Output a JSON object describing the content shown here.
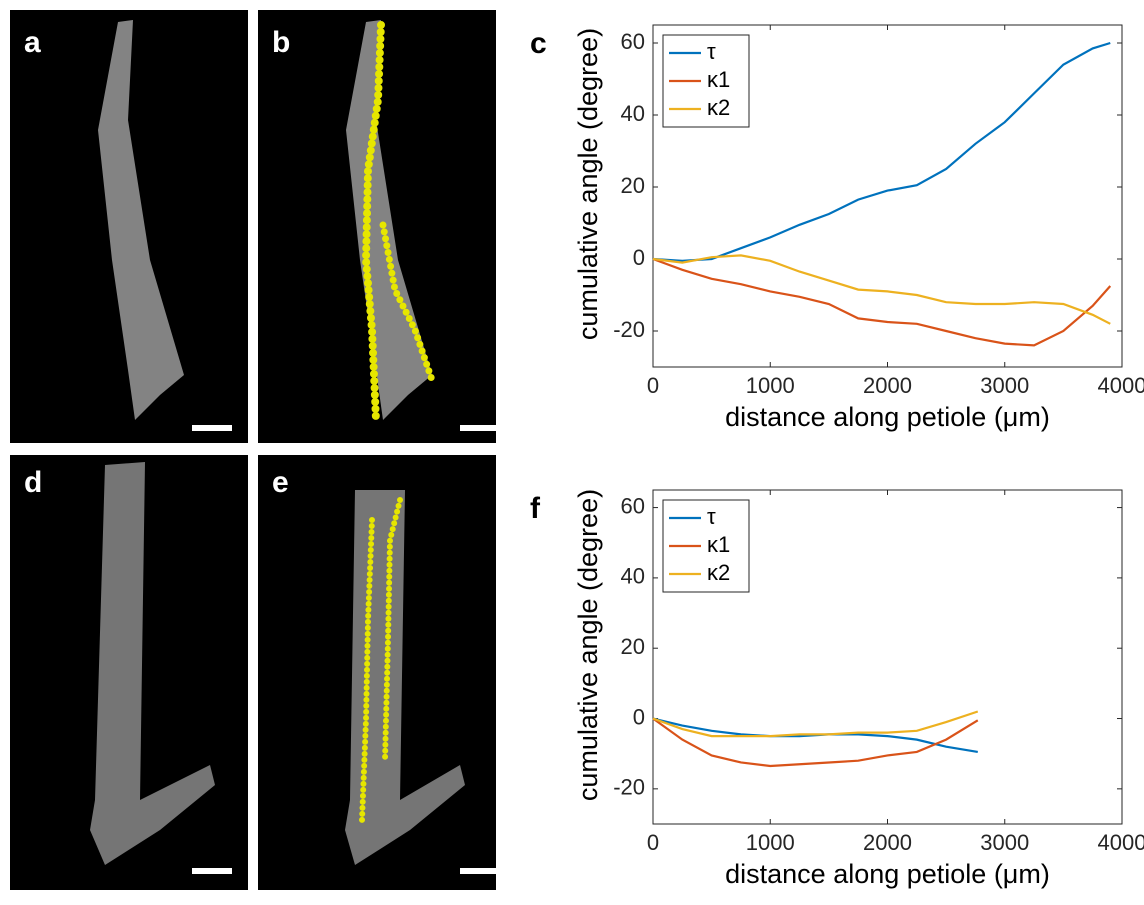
{
  "panels": {
    "a": "a",
    "b": "b",
    "d": "d",
    "e": "e"
  },
  "chart_data": [
    {
      "type": "line",
      "label": "c",
      "xlabel": "distance along petiole (μm)",
      "ylabel": "cumulative angle (degree)",
      "x": [
        0,
        250,
        500,
        750,
        1000,
        1250,
        1500,
        1750,
        2000,
        2250,
        2500,
        2750,
        3000,
        3250,
        3500,
        3750,
        3900
      ],
      "series": [
        {
          "name": "τ",
          "color": "#0072BD",
          "values": [
            0,
            -0.5,
            0,
            3,
            6,
            9.5,
            12.5,
            16.5,
            19,
            20.5,
            25,
            32,
            38,
            46,
            54,
            58.5,
            60
          ]
        },
        {
          "name": "κ1",
          "color": "#D95319",
          "values": [
            0,
            -3,
            -5.5,
            -7,
            -9,
            -10.5,
            -12.5,
            -16.5,
            -17.5,
            -18,
            -20,
            -22,
            -23.5,
            -24,
            -20,
            -13,
            -7.5
          ]
        },
        {
          "name": "κ2",
          "color": "#EDB120",
          "values": [
            0,
            -1,
            0.5,
            1,
            -0.5,
            -3.5,
            -6,
            -8.5,
            -9,
            -10,
            -12,
            -12.5,
            -12.5,
            -12,
            -12.5,
            -15.5,
            -18
          ]
        }
      ],
      "xlim": [
        0,
        4000
      ],
      "xticks": [
        0,
        1000,
        2000,
        3000,
        4000
      ],
      "ylim": [
        -30,
        65
      ],
      "yticks": [
        -20,
        0,
        20,
        40,
        60
      ],
      "legend": "upper left"
    },
    {
      "type": "line",
      "label": "f",
      "xlabel": "distance along petiole (μm)",
      "ylabel": "cumulative angle (degree)",
      "x": [
        0,
        250,
        500,
        750,
        1000,
        1250,
        1500,
        1750,
        2000,
        2250,
        2500,
        2770
      ],
      "series": [
        {
          "name": "τ",
          "color": "#0072BD",
          "values": [
            0,
            -2,
            -3.5,
            -4.5,
            -5,
            -5,
            -4.5,
            -4.5,
            -5,
            -6,
            -8,
            -9.5
          ]
        },
        {
          "name": "κ1",
          "color": "#D95319",
          "values": [
            0,
            -6,
            -10.5,
            -12.5,
            -13.5,
            -13,
            -12.5,
            -12,
            -10.5,
            -9.5,
            -6,
            -0.5
          ]
        },
        {
          "name": "κ2",
          "color": "#EDB120",
          "values": [
            0,
            -3,
            -5,
            -5,
            -5,
            -4.5,
            -4.5,
            -4,
            -4,
            -3.5,
            -1,
            2
          ]
        }
      ],
      "xlim": [
        0,
        4000
      ],
      "xticks": [
        0,
        1000,
        2000,
        3000,
        4000
      ],
      "ylim": [
        -30,
        65
      ],
      "yticks": [
        -20,
        0,
        20,
        40,
        60
      ],
      "legend": "upper left"
    }
  ]
}
